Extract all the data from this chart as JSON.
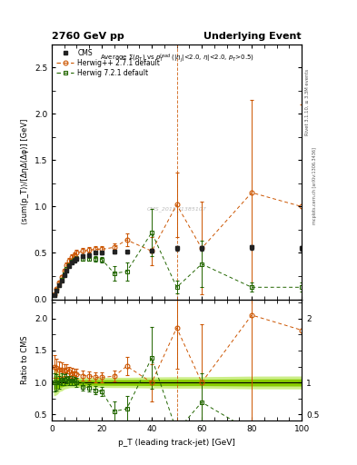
{
  "title_left": "2760 GeV pp",
  "title_right": "Underlying Event",
  "plot_title": "Average Σ(p_T) vs p_T^{lead} (|η_j|<2.0, η|<2.0, p_T>0.5)",
  "ylabel_main": "⟨sum(p_T)⟩/[ΔηΔ(Δφ)] [GeV]",
  "ylabel_ratio": "Ratio to CMS",
  "xlabel": "p_T (leading track-jet) [GeV]",
  "right_label_top": "Rivet 3.1.10, ≥ 3.3M events",
  "right_label_bot": "mcplots.cern.ch [arXiv:1306.3436]",
  "watermark": "CMS_2015_I1385107",
  "cms_x": [
    1.0,
    2.0,
    3.0,
    4.0,
    5.0,
    6.0,
    7.0,
    8.0,
    9.0,
    10.0,
    12.5,
    15.0,
    17.5,
    20.0,
    25.0,
    30.0,
    40.0,
    50.0,
    60.0,
    80.0,
    100.0
  ],
  "cms_y": [
    0.04,
    0.09,
    0.15,
    0.2,
    0.26,
    0.31,
    0.36,
    0.4,
    0.42,
    0.44,
    0.47,
    0.48,
    0.5,
    0.5,
    0.51,
    0.51,
    0.52,
    0.55,
    0.55,
    0.56,
    0.55
  ],
  "cms_yerr": [
    0.004,
    0.008,
    0.01,
    0.012,
    0.012,
    0.013,
    0.013,
    0.014,
    0.015,
    0.015,
    0.016,
    0.016,
    0.017,
    0.017,
    0.018,
    0.018,
    0.02,
    0.022,
    0.022,
    0.025,
    0.025
  ],
  "hpp_x": [
    1.0,
    2.0,
    3.0,
    4.0,
    5.0,
    6.0,
    7.0,
    8.0,
    9.0,
    10.0,
    12.5,
    15.0,
    17.5,
    20.0,
    25.0,
    30.0,
    40.0,
    50.0,
    60.0,
    80.0,
    100.0
  ],
  "hpp_y": [
    0.05,
    0.11,
    0.18,
    0.24,
    0.31,
    0.37,
    0.42,
    0.46,
    0.48,
    0.5,
    0.52,
    0.53,
    0.54,
    0.54,
    0.56,
    0.64,
    0.52,
    1.02,
    0.55,
    1.15,
    1.0
  ],
  "hpp_yerr": [
    0.005,
    0.01,
    0.015,
    0.018,
    0.02,
    0.025,
    0.025,
    0.028,
    0.028,
    0.03,
    0.03,
    0.03,
    0.035,
    0.035,
    0.04,
    0.07,
    0.15,
    0.35,
    0.5,
    1.0,
    1.1
  ],
  "h7_x": [
    1.0,
    2.0,
    3.0,
    4.0,
    5.0,
    6.0,
    7.0,
    8.0,
    9.0,
    10.0,
    12.5,
    15.0,
    17.5,
    20.0,
    25.0,
    30.0,
    40.0,
    50.0,
    60.0,
    80.0,
    100.0
  ],
  "h7_y": [
    0.04,
    0.09,
    0.15,
    0.21,
    0.27,
    0.33,
    0.37,
    0.41,
    0.43,
    0.44,
    0.44,
    0.44,
    0.44,
    0.43,
    0.28,
    0.3,
    0.72,
    0.13,
    0.38,
    0.13,
    0.13
  ],
  "h7_yerr": [
    0.004,
    0.008,
    0.012,
    0.015,
    0.018,
    0.02,
    0.022,
    0.024,
    0.025,
    0.025,
    0.026,
    0.026,
    0.03,
    0.03,
    0.08,
    0.1,
    0.25,
    0.07,
    0.25,
    0.05,
    0.05
  ],
  "cms_color": "#222222",
  "hpp_color": "#cc5500",
  "h7_color": "#226600",
  "band_inner": "#88cc00",
  "band_outer": "#ccee88",
  "ylim_main": [
    0.0,
    2.75
  ],
  "ylim_ratio": [
    0.4,
    2.3
  ],
  "xlim": [
    0,
    100
  ],
  "vline_x": [
    50,
    100
  ]
}
